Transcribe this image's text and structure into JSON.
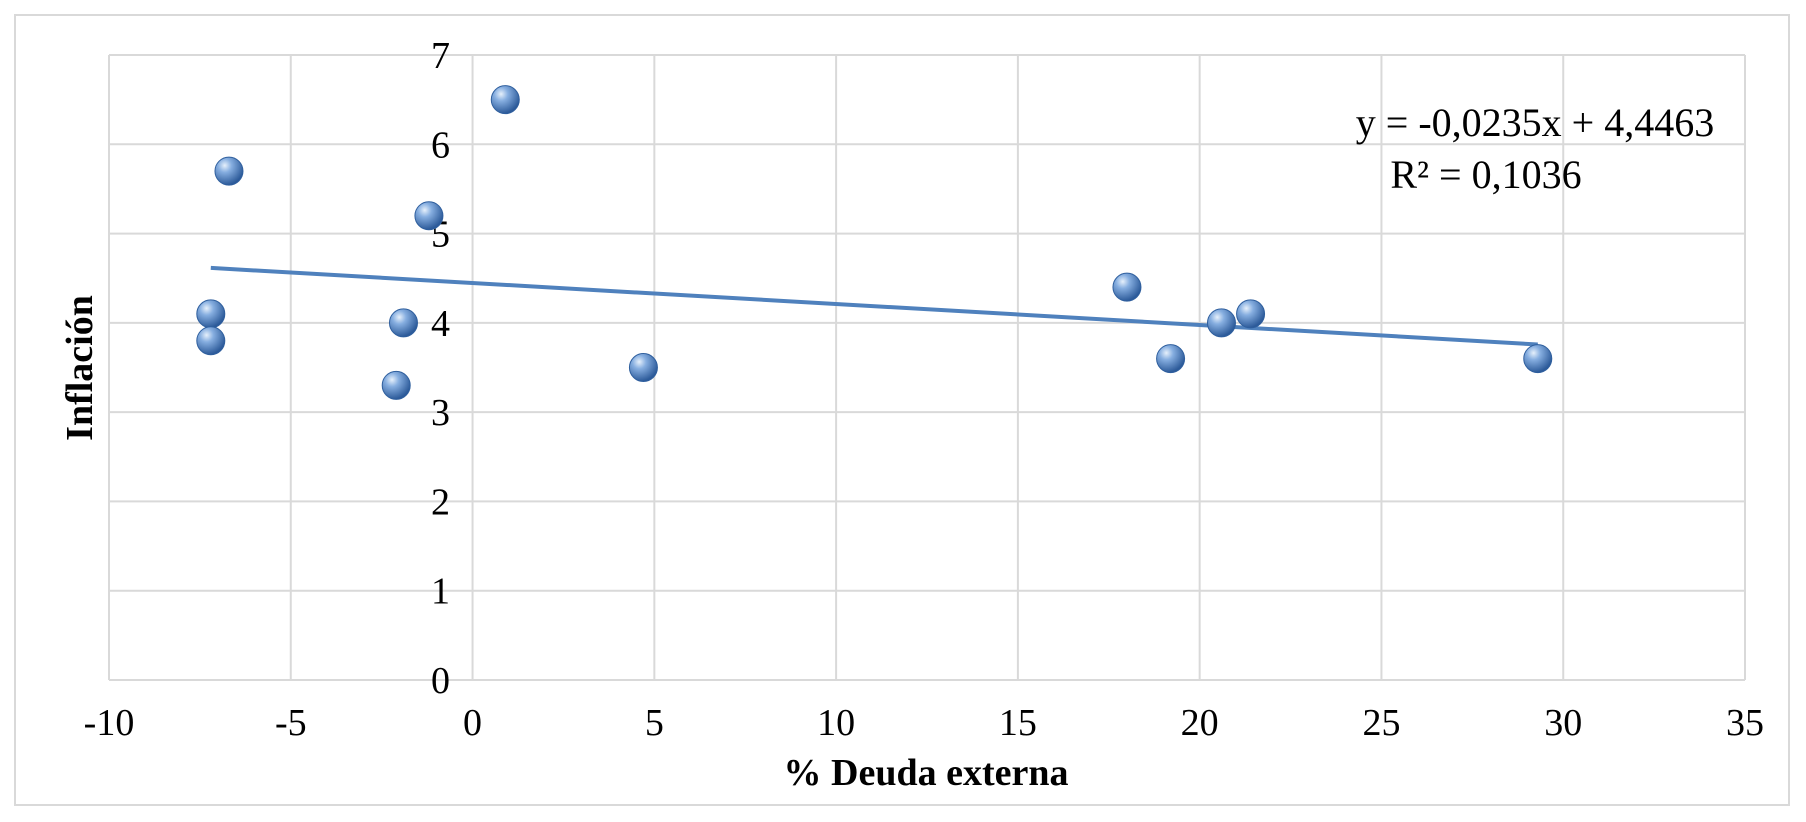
{
  "chart_data": {
    "type": "scatter",
    "title": "",
    "xlabel": "% Deuda externa",
    "ylabel": "Inflación",
    "xlim": [
      -10,
      35
    ],
    "ylim": [
      0,
      7
    ],
    "x_ticks": [
      -10,
      -5,
      0,
      5,
      10,
      15,
      20,
      25,
      30,
      35
    ],
    "y_ticks": [
      0,
      1,
      2,
      3,
      4,
      5,
      6,
      7
    ],
    "x_tick_labels": [
      "-10",
      "-5",
      "0",
      "5",
      "10",
      "15",
      "20",
      "25",
      "30",
      "35"
    ],
    "y_tick_labels": [
      "0",
      "1",
      "2",
      "3",
      "4",
      "5",
      "6",
      "7"
    ],
    "grid": true,
    "legend": "none",
    "marker_color": "#4f81bd",
    "trendline_color": "#4f81bd",
    "grid_color": "#d9d9d9",
    "points": [
      {
        "x": -7.2,
        "y": 4.1
      },
      {
        "x": -7.2,
        "y": 3.8
      },
      {
        "x": -6.7,
        "y": 5.7
      },
      {
        "x": -2.1,
        "y": 3.3
      },
      {
        "x": -1.9,
        "y": 4.0
      },
      {
        "x": -1.2,
        "y": 5.2
      },
      {
        "x": 0.9,
        "y": 6.5
      },
      {
        "x": 4.7,
        "y": 3.5
      },
      {
        "x": 18.0,
        "y": 4.4
      },
      {
        "x": 19.2,
        "y": 3.6
      },
      {
        "x": 20.6,
        "y": 4.0
      },
      {
        "x": 21.4,
        "y": 4.1
      },
      {
        "x": 29.3,
        "y": 3.6
      }
    ],
    "trendline": {
      "type": "linear",
      "slope": -0.0235,
      "intercept": 4.4463,
      "x_range": [
        -7.2,
        29.3
      ],
      "equation": "y = -0,0235x + 4,4463",
      "r_squared": "R² = 0,1036"
    }
  }
}
